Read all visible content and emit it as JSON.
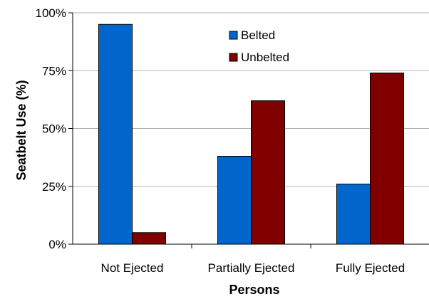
{
  "chart_data": {
    "type": "bar",
    "categories": [
      "Not Ejected",
      "Partially Ejected",
      "Fully Ejected"
    ],
    "series": [
      {
        "name": "Belted",
        "values": [
          95,
          38,
          26
        ],
        "color": "#0066CC"
      },
      {
        "name": "Unbelted",
        "values": [
          5,
          62,
          74
        ],
        "color": "#800000"
      }
    ],
    "xlabel": "Persons",
    "ylabel": "Seatbelt Use (%)",
    "ylim": [
      0,
      100
    ],
    "yticks": [
      0,
      25,
      50,
      75,
      100
    ],
    "ytick_labels": [
      "0%",
      "25%",
      "50%",
      "75%",
      "100%"
    ],
    "grid": "horizontal",
    "legend_position": "top-center"
  }
}
